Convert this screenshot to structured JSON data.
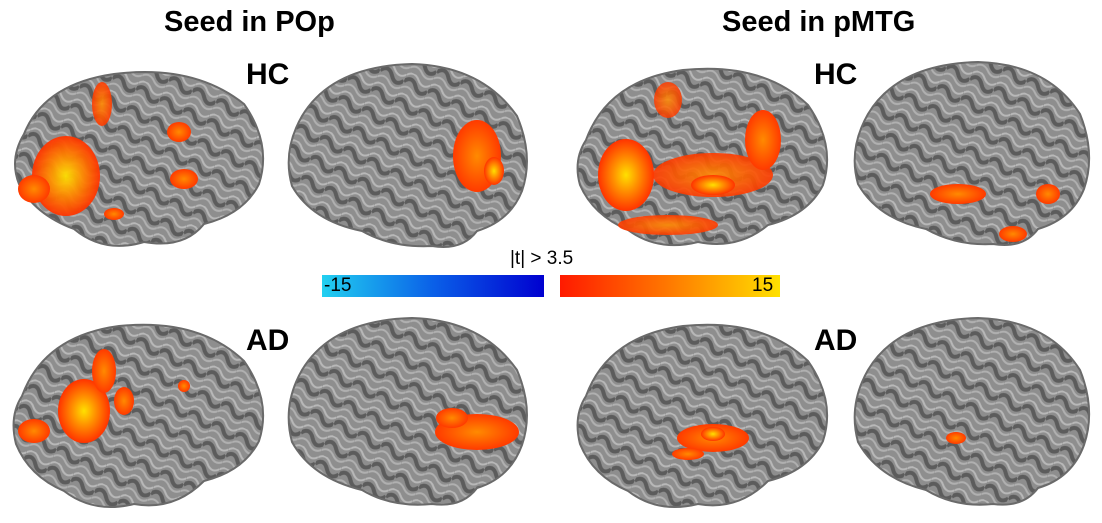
{
  "titles": {
    "left": "Seed in POp",
    "right": "Seed in pMTG"
  },
  "groups": {
    "hc": "HC",
    "ad": "AD"
  },
  "colorbar": {
    "threshold_label": "|t| > 3.5",
    "min_label": "-15",
    "max_label": "15",
    "min_value": -15,
    "max_value": 15,
    "negative_colors": [
      "#22d0f0",
      "#0a60e8",
      "#0000d0"
    ],
    "positive_colors": [
      "#ff1a00",
      "#ff7a00",
      "#ffe000"
    ]
  },
  "colors": {
    "cortex": "#8a8a8a",
    "cortex_dark": "#5e5e5e",
    "cortex_light": "#b5b5b5",
    "activation_low": "#ff3300",
    "activation_mid": "#ff8800",
    "activation_high": "#ffe000"
  }
}
